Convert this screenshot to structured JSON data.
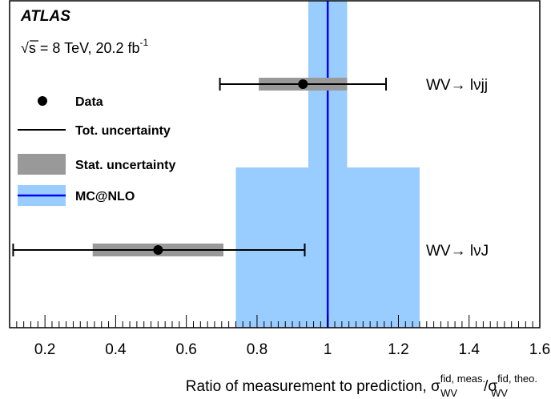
{
  "chart_data": {
    "type": "scatter",
    "xlabel_text": "Ratio of measurement to prediction, σ",
    "xlabel_sup1": "fid, meas.",
    "xlabel_sub": "WV",
    "xlabel_slash": "/σ",
    "xlabel_sup2": "fid, theo.",
    "xlim": [
      0.1,
      1.6
    ],
    "x_ticks": [
      "0.2",
      "0.4",
      "0.6",
      "0.8",
      "1",
      "1.2",
      "1.4",
      "1.6"
    ],
    "experiment": "ATLAS",
    "energy_text": "s = 8 TeV, 20.2 fb",
    "energy_sup": "-1",
    "sqrt_symbol": "√",
    "prediction": {
      "central": 1.0,
      "bands": [
        {
          "channel": "WV→ lvjj",
          "low": 0.945,
          "high": 1.055
        },
        {
          "channel": "WV→ lvJ",
          "low": 0.74,
          "high": 1.26
        }
      ]
    },
    "measurements": [
      {
        "channel": "WV→ lvjj",
        "label": "WV→ lνjj",
        "value": 0.93,
        "stat_low": 0.805,
        "stat_high": 1.055,
        "tot_low": 0.695,
        "tot_high": 1.165
      },
      {
        "channel": "WV→ lvJ",
        "label": "WV→ lνJ",
        "value": 0.52,
        "stat_low": 0.335,
        "stat_high": 0.705,
        "tot_low": 0.11,
        "tot_high": 0.935
      }
    ],
    "legend": {
      "placement": "top-left",
      "entries": [
        {
          "key": "data",
          "label": "Data"
        },
        {
          "key": "tot",
          "label": "Tot. uncertainty"
        },
        {
          "key": "stat",
          "label": "Stat. uncertainty"
        },
        {
          "key": "mc",
          "label": "MC@NLO"
        }
      ]
    },
    "colors": {
      "band": "#99ccff",
      "central_line": "#0000ff",
      "stat": "#999999",
      "error": "#000000"
    }
  }
}
